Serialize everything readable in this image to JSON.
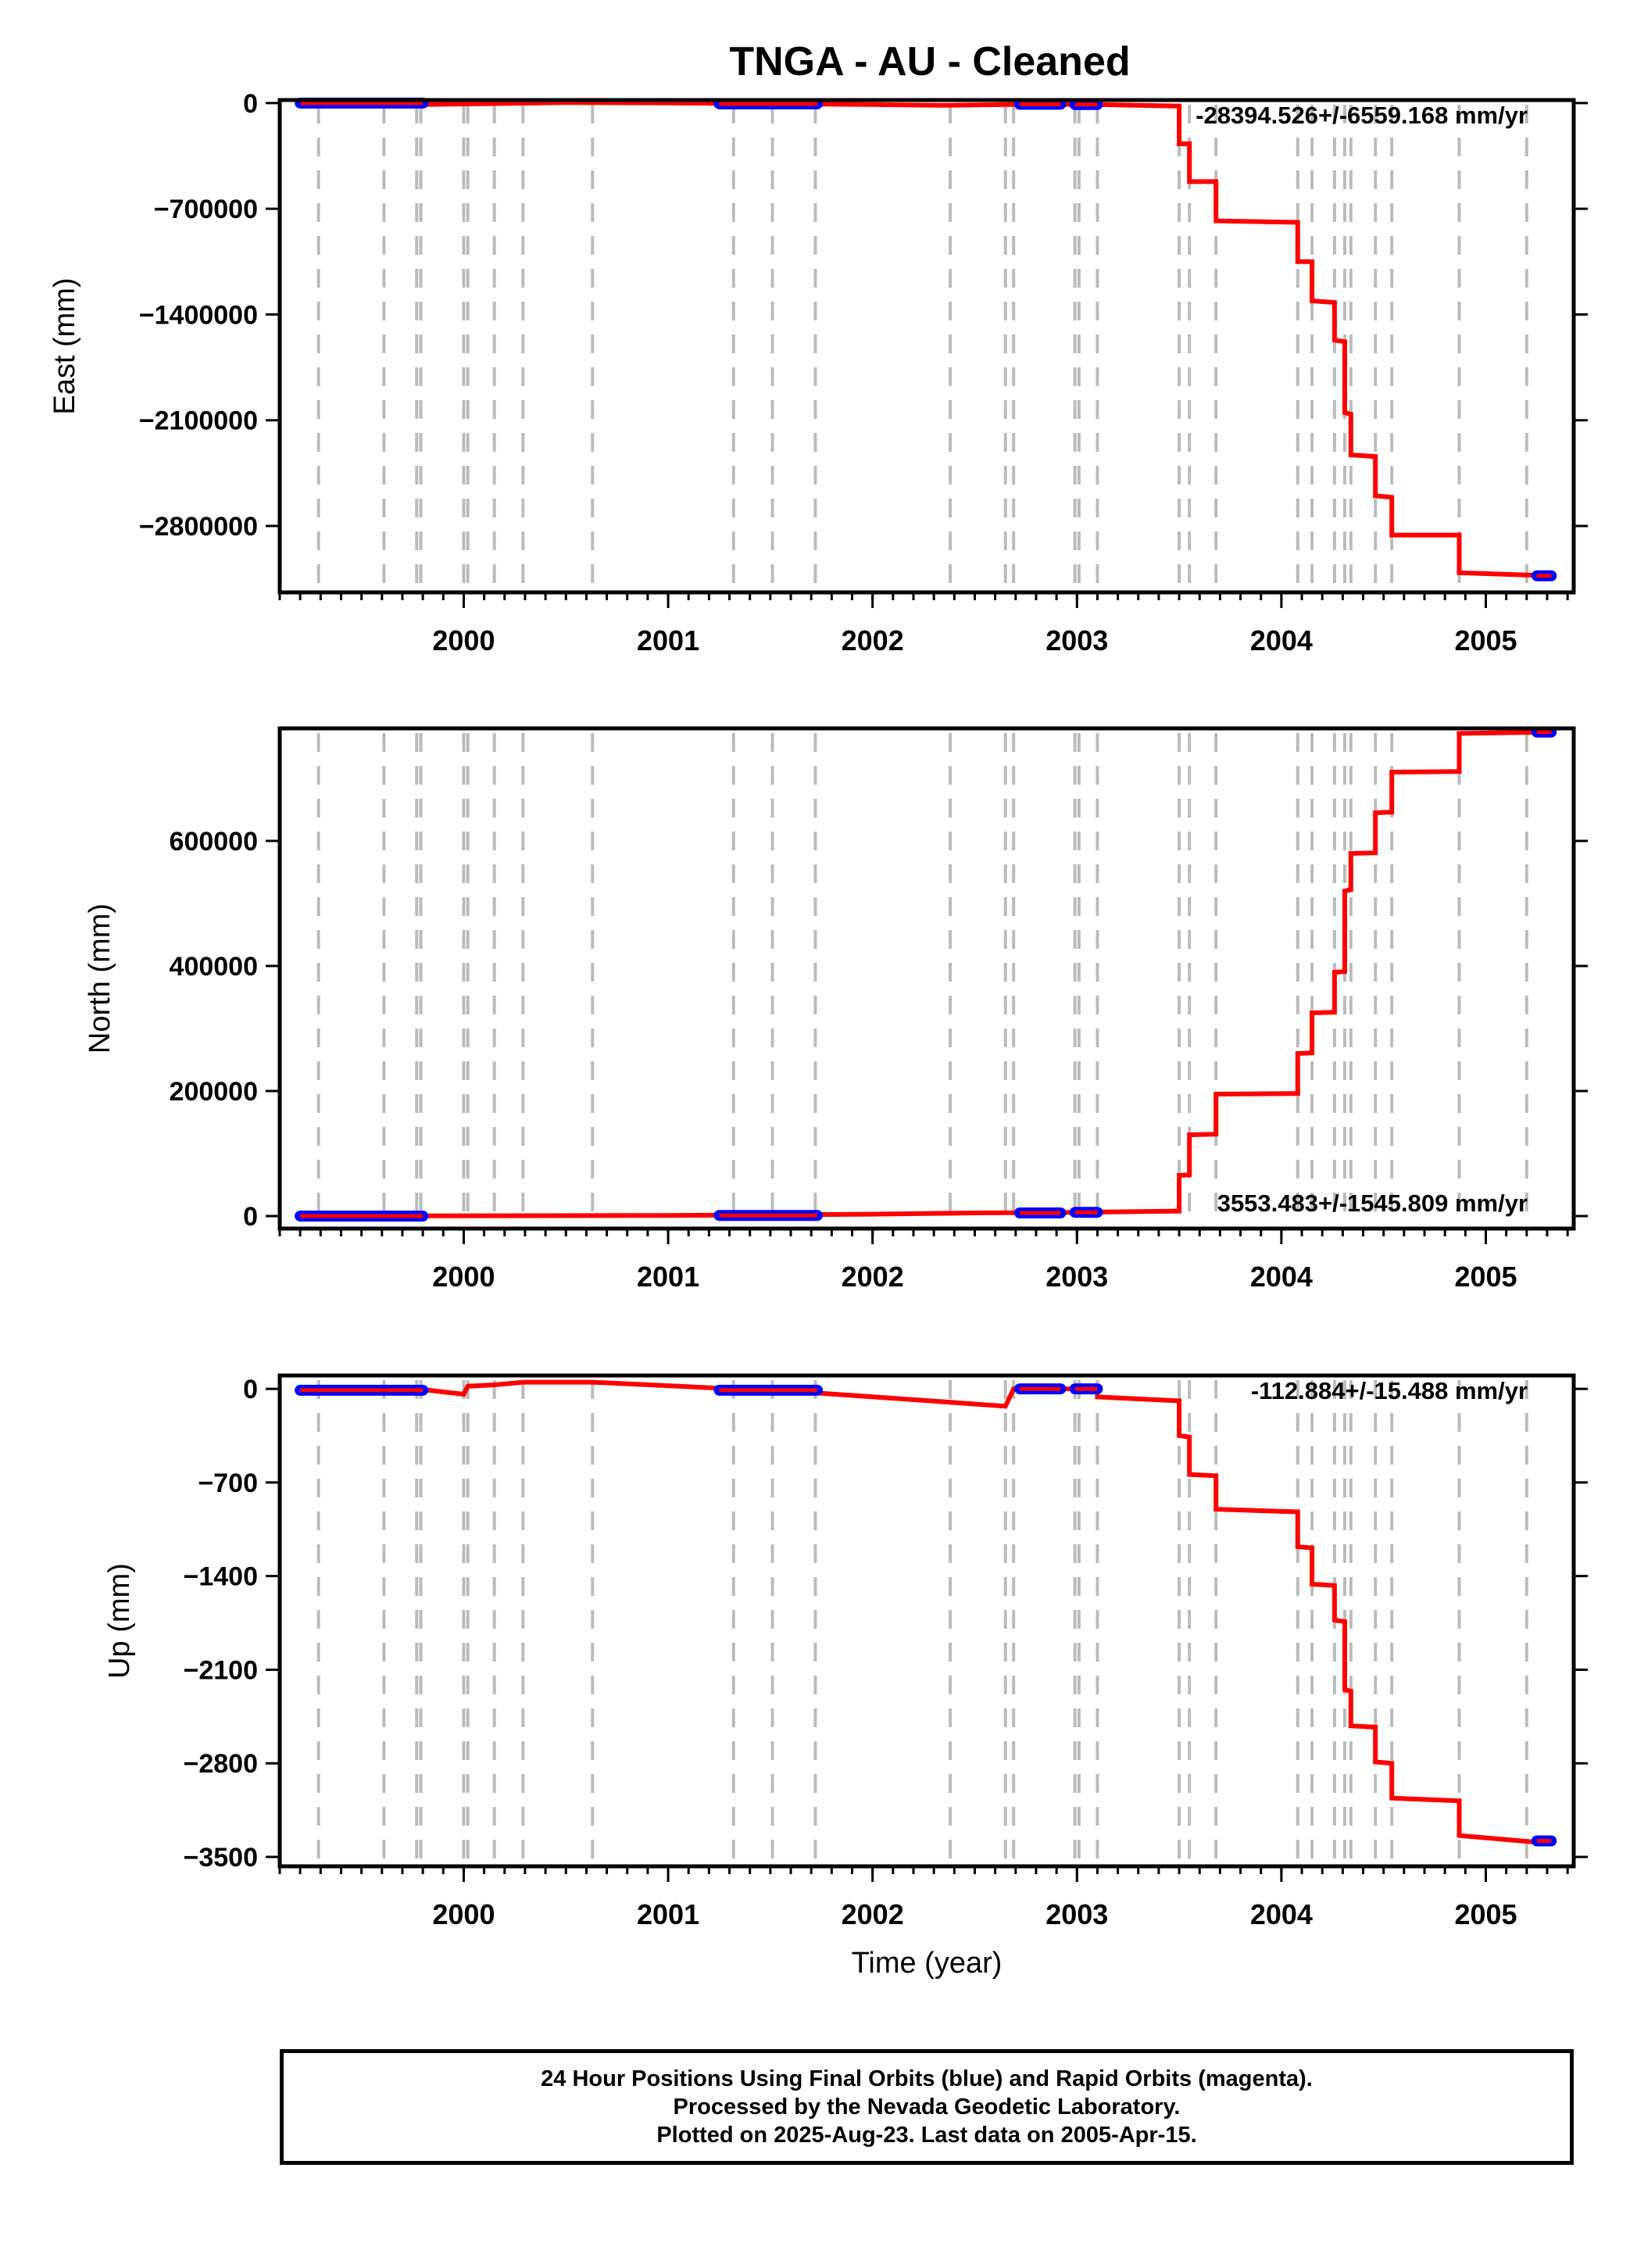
{
  "title": "TNGA  - AU - Cleaned",
  "footer": {
    "line1": "24 Hour Positions Using Final Orbits (blue) and Rapid Orbits (magenta).",
    "line2": "Processed by the Nevada Geodetic Laboratory.",
    "line3": "Plotted on 2025-Aug-23. Last data on 2005-Apr-15."
  },
  "colors": {
    "model_line": "#ff0000",
    "final_points": "#0000ff",
    "rapid_points": "#ff00ff",
    "steps": "#bbbbbb"
  },
  "chart_data": [
    {
      "type": "line",
      "ylabel": "East (mm)",
      "xlim": [
        1999.1,
        2005.43
      ],
      "ylim": [
        -3240000,
        20000
      ],
      "yticks": [
        0,
        -700000,
        -1400000,
        -2100000,
        -2800000
      ],
      "ytick_labels": [
        "0",
        "−700000",
        "−1400000",
        "−2100000",
        "−2800000"
      ],
      "xticks": [
        2000,
        2001,
        2002,
        2003,
        2004,
        2005
      ],
      "xtick_labels": [
        "2000",
        "2001",
        "2002",
        "2003",
        "2004",
        "2005"
      ],
      "rate_text": "-28394.526+/-6559.168 mm/yr",
      "rate_position": "top-right",
      "step_epochs": [
        1999.29,
        1999.61,
        1999.77,
        1999.79,
        2000.0,
        2000.02,
        2000.15,
        2000.29,
        2000.63,
        2001.32,
        2001.51,
        2001.72,
        2002.38,
        2002.65,
        2002.69,
        2002.99,
        2003.01,
        2003.1,
        2003.5,
        2003.55,
        2003.68,
        2004.08,
        2004.15,
        2004.26,
        2004.31,
        2004.34,
        2004.46,
        2004.54,
        2004.87,
        2005.2
      ],
      "model_series": [
        [
          1999.2,
          0
        ],
        [
          1999.8,
          -10000
        ],
        [
          2000.5,
          3000
        ],
        [
          2001.0,
          1000
        ],
        [
          2001.5,
          -5000
        ],
        [
          2002.0,
          -10000
        ],
        [
          2002.35,
          -15000
        ],
        [
          2002.75,
          -8000
        ],
        [
          2003.1,
          -10000
        ],
        [
          2003.5,
          -20000
        ],
        [
          2003.5,
          -270000
        ],
        [
          2003.55,
          -270000
        ],
        [
          2003.55,
          -520000
        ],
        [
          2003.68,
          -520000
        ],
        [
          2003.68,
          -780000
        ],
        [
          2004.08,
          -790000
        ],
        [
          2004.08,
          -1050000
        ],
        [
          2004.15,
          -1050000
        ],
        [
          2004.15,
          -1310000
        ],
        [
          2004.26,
          -1320000
        ],
        [
          2004.26,
          -1570000
        ],
        [
          2004.31,
          -1580000
        ],
        [
          2004.31,
          -2050000
        ],
        [
          2004.34,
          -2060000
        ],
        [
          2004.34,
          -2330000
        ],
        [
          2004.46,
          -2340000
        ],
        [
          2004.46,
          -2600000
        ],
        [
          2004.54,
          -2610000
        ],
        [
          2004.54,
          -2860000
        ],
        [
          2004.87,
          -2860000
        ],
        [
          2004.87,
          -3110000
        ],
        [
          2005.32,
          -3130000
        ]
      ],
      "final_segments": [
        [
          1999.2,
          1999.8,
          0
        ],
        [
          2001.25,
          2001.73,
          -5000
        ],
        [
          2002.72,
          2002.92,
          -8000
        ],
        [
          2002.99,
          2003.1,
          -10000
        ],
        [
          2005.25,
          2005.32,
          -3130000
        ]
      ]
    },
    {
      "type": "line",
      "ylabel": "North (mm)",
      "xlim": [
        1999.1,
        2005.43
      ],
      "ylim": [
        -20000,
        780000
      ],
      "yticks": [
        0,
        200000,
        400000,
        600000
      ],
      "ytick_labels": [
        "0",
        "200000",
        "400000",
        "600000"
      ],
      "xticks": [
        2000,
        2001,
        2002,
        2003,
        2004,
        2005
      ],
      "xtick_labels": [
        "2000",
        "2001",
        "2002",
        "2003",
        "2004",
        "2005"
      ],
      "rate_text": "3553.483+/-1545.809 mm/yr",
      "rate_position": "bottom-right",
      "step_epochs": [
        1999.29,
        1999.61,
        1999.77,
        1999.79,
        2000.0,
        2000.02,
        2000.15,
        2000.29,
        2000.63,
        2001.32,
        2001.51,
        2001.72,
        2002.38,
        2002.65,
        2002.69,
        2002.99,
        2003.01,
        2003.1,
        2003.5,
        2003.55,
        2003.68,
        2004.08,
        2004.15,
        2004.26,
        2004.31,
        2004.34,
        2004.46,
        2004.54,
        2004.87,
        2005.2
      ],
      "model_series": [
        [
          1999.2,
          0
        ],
        [
          2001.0,
          1000
        ],
        [
          2002.0,
          3000
        ],
        [
          2002.5,
          5000
        ],
        [
          2003.0,
          6000
        ],
        [
          2003.5,
          8000
        ],
        [
          2003.5,
          65000
        ],
        [
          2003.55,
          66000
        ],
        [
          2003.55,
          130000
        ],
        [
          2003.68,
          131000
        ],
        [
          2003.68,
          195000
        ],
        [
          2004.08,
          196000
        ],
        [
          2004.08,
          260000
        ],
        [
          2004.15,
          261000
        ],
        [
          2004.15,
          325000
        ],
        [
          2004.26,
          326000
        ],
        [
          2004.26,
          390000
        ],
        [
          2004.31,
          391000
        ],
        [
          2004.31,
          520000
        ],
        [
          2004.34,
          522000
        ],
        [
          2004.34,
          580000
        ],
        [
          2004.46,
          581000
        ],
        [
          2004.46,
          645000
        ],
        [
          2004.54,
          646000
        ],
        [
          2004.54,
          710000
        ],
        [
          2004.87,
          711000
        ],
        [
          2004.87,
          772000
        ],
        [
          2005.32,
          774000
        ]
      ],
      "final_segments": [
        [
          1999.2,
          1999.8,
          0
        ],
        [
          2001.25,
          2001.73,
          1000
        ],
        [
          2002.72,
          2002.92,
          5000
        ],
        [
          2002.99,
          2003.1,
          6000
        ],
        [
          2005.25,
          2005.32,
          774000
        ]
      ]
    },
    {
      "type": "line",
      "ylabel": "Up (mm)",
      "xlim": [
        1999.1,
        2005.43
      ],
      "ylim": [
        -3570,
        100
      ],
      "yticks": [
        0,
        -700,
        -1400,
        -2100,
        -2800,
        -3500
      ],
      "ytick_labels": [
        "0",
        "−700",
        "−1400",
        "−2100",
        "−2800",
        "−3500"
      ],
      "xticks": [
        2000,
        2001,
        2002,
        2003,
        2004,
        2005
      ],
      "xtick_labels": [
        "2000",
        "2001",
        "2002",
        "2003",
        "2004",
        "2005"
      ],
      "xlabel": "Time (year)",
      "rate_text": "-112.884+/-15.488 mm/yr",
      "rate_position": "top-right",
      "step_epochs": [
        1999.29,
        1999.61,
        1999.77,
        1999.79,
        2000.0,
        2000.02,
        2000.15,
        2000.29,
        2000.63,
        2001.32,
        2001.51,
        2001.72,
        2002.38,
        2002.65,
        2002.69,
        2002.99,
        2003.01,
        2003.1,
        2003.5,
        2003.55,
        2003.68,
        2004.08,
        2004.15,
        2004.26,
        2004.31,
        2004.34,
        2004.46,
        2004.54,
        2004.87,
        2005.2
      ],
      "model_series": [
        [
          1999.2,
          0
        ],
        [
          1999.6,
          -15
        ],
        [
          1999.8,
          -5
        ],
        [
          2000.0,
          -40
        ],
        [
          2000.02,
          20
        ],
        [
          2000.15,
          30
        ],
        [
          2000.29,
          50
        ],
        [
          2000.63,
          50
        ],
        [
          2001.32,
          0
        ],
        [
          2001.72,
          -30
        ],
        [
          2002.38,
          -100
        ],
        [
          2002.65,
          -130
        ],
        [
          2002.69,
          0
        ],
        [
          2003.1,
          0
        ],
        [
          2003.1,
          -60
        ],
        [
          2003.5,
          -90
        ],
        [
          2003.5,
          -350
        ],
        [
          2003.55,
          -360
        ],
        [
          2003.55,
          -640
        ],
        [
          2003.68,
          -650
        ],
        [
          2003.68,
          -900
        ],
        [
          2004.08,
          -920
        ],
        [
          2004.08,
          -1180
        ],
        [
          2004.15,
          -1190
        ],
        [
          2004.15,
          -1460
        ],
        [
          2004.26,
          -1470
        ],
        [
          2004.26,
          -1730
        ],
        [
          2004.31,
          -1740
        ],
        [
          2004.31,
          -2250
        ],
        [
          2004.34,
          -2260
        ],
        [
          2004.34,
          -2520
        ],
        [
          2004.46,
          -2530
        ],
        [
          2004.46,
          -2790
        ],
        [
          2004.54,
          -2800
        ],
        [
          2004.54,
          -3060
        ],
        [
          2004.87,
          -3080
        ],
        [
          2004.87,
          -3340
        ],
        [
          2005.32,
          -3400
        ]
      ],
      "final_segments": [
        [
          1999.2,
          1999.8,
          -10
        ],
        [
          2001.25,
          2001.73,
          -10
        ],
        [
          2002.72,
          2002.92,
          0
        ],
        [
          2002.99,
          2003.1,
          0
        ],
        [
          2005.25,
          2005.32,
          -3380
        ]
      ]
    }
  ]
}
